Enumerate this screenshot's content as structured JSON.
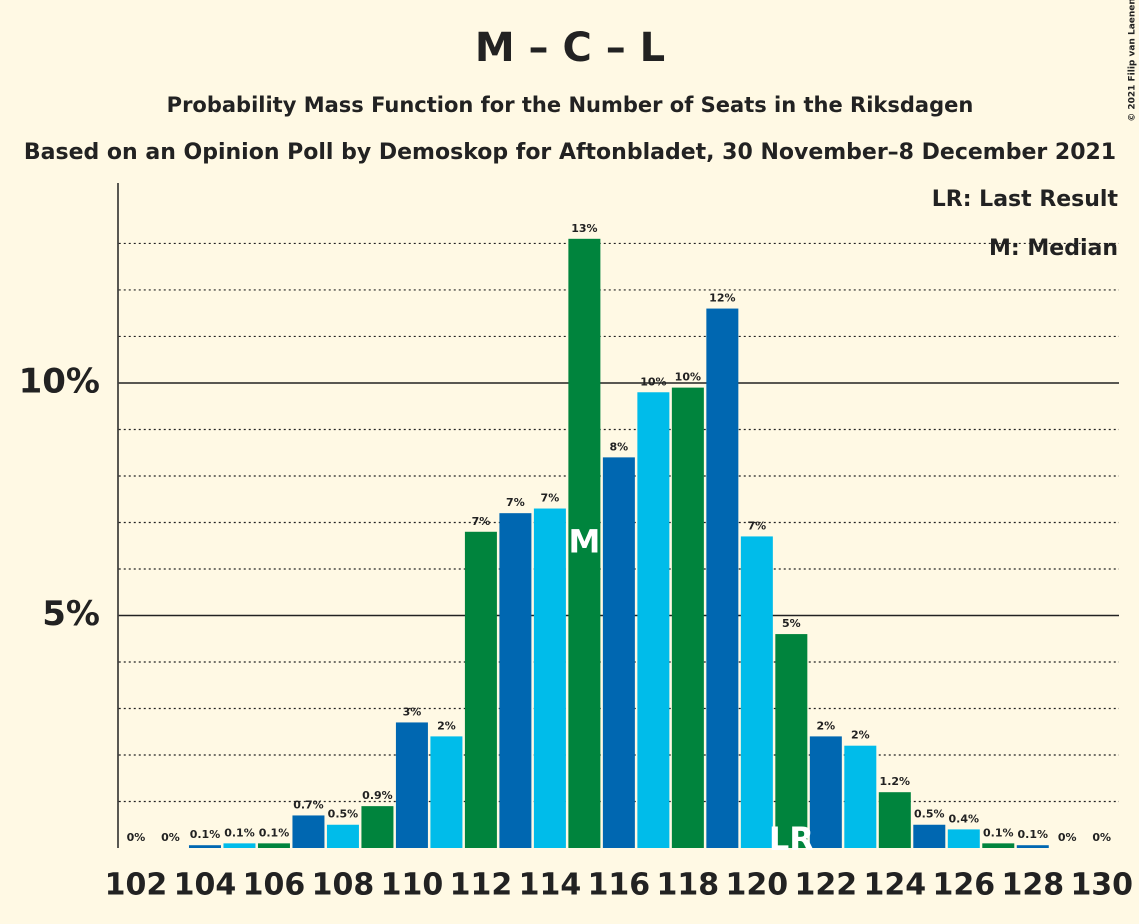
{
  "chart_data": {
    "type": "bar",
    "title": "M – C – L",
    "subtitle": "Probability Mass Function for the Number of Seats in the Riksdagen",
    "subtitle2": "Based on an Opinion Poll by Demoskop for Aftonbladet, 30 November–8 December 2021",
    "copyright": "© 2021 Filip van Laenen",
    "legend": [
      "LR: Last Result",
      "M: Median"
    ],
    "categories": [
      "102",
      null,
      "104",
      null,
      "106",
      null,
      "108",
      null,
      "110",
      null,
      "112",
      null,
      "114",
      null,
      "116",
      null,
      "118",
      null,
      "120",
      null,
      "122",
      null,
      "124",
      null,
      "126",
      null,
      "128",
      null,
      "130"
    ],
    "values": [
      0,
      0,
      0.06,
      0.1,
      0.1,
      0.7,
      0.5,
      0.9,
      2.7,
      2.4,
      6.8,
      7.2,
      7.3,
      13.1,
      8.4,
      9.8,
      9.9,
      11.6,
      6.7,
      4.6,
      2.4,
      2.2,
      1.2,
      0.5,
      0.4,
      0.1,
      0.06,
      0,
      0
    ],
    "value_labels": [
      "0%",
      "0%",
      "0.1%",
      "0.1%",
      "0.1%",
      "0.7%",
      "0.5%",
      "0.9%",
      "3%",
      "2%",
      "7%",
      "7%",
      "7%",
      "13%",
      "8%",
      "10%",
      "10%",
      "12%",
      "7%",
      "5%",
      "2%",
      "2%",
      "1.2%",
      "0.5%",
      "0.4%",
      "0.1%",
      "0.1%",
      "0%",
      "0%"
    ],
    "colors": [
      "#00bcea",
      "#00843d",
      "#0067b1",
      "#00bcea",
      "#00843d",
      "#0067b1",
      "#00bcea",
      "#00843d",
      "#0067b1",
      "#00bcea",
      "#00843d",
      "#0067b1",
      "#00bcea",
      "#00843d",
      "#0067b1",
      "#00bcea",
      "#00843d",
      "#0067b1",
      "#00bcea",
      "#00843d",
      "#0067b1",
      "#00bcea",
      "#00843d",
      "#0067b1",
      "#00bcea",
      "#00843d",
      "#0067b1",
      "#00bcea",
      "#00843d"
    ],
    "markers": [
      {
        "index": 13,
        "label": "M"
      },
      {
        "index": 19,
        "label": "LR"
      }
    ],
    "ylim": [
      0,
      14.3
    ],
    "yticks": [
      {
        "value": 5,
        "label": "5%"
      },
      {
        "value": 10,
        "label": "10%"
      }
    ],
    "minor_yticks": [
      1,
      2,
      3,
      4,
      6,
      7,
      8,
      9,
      11,
      12,
      13
    ]
  }
}
